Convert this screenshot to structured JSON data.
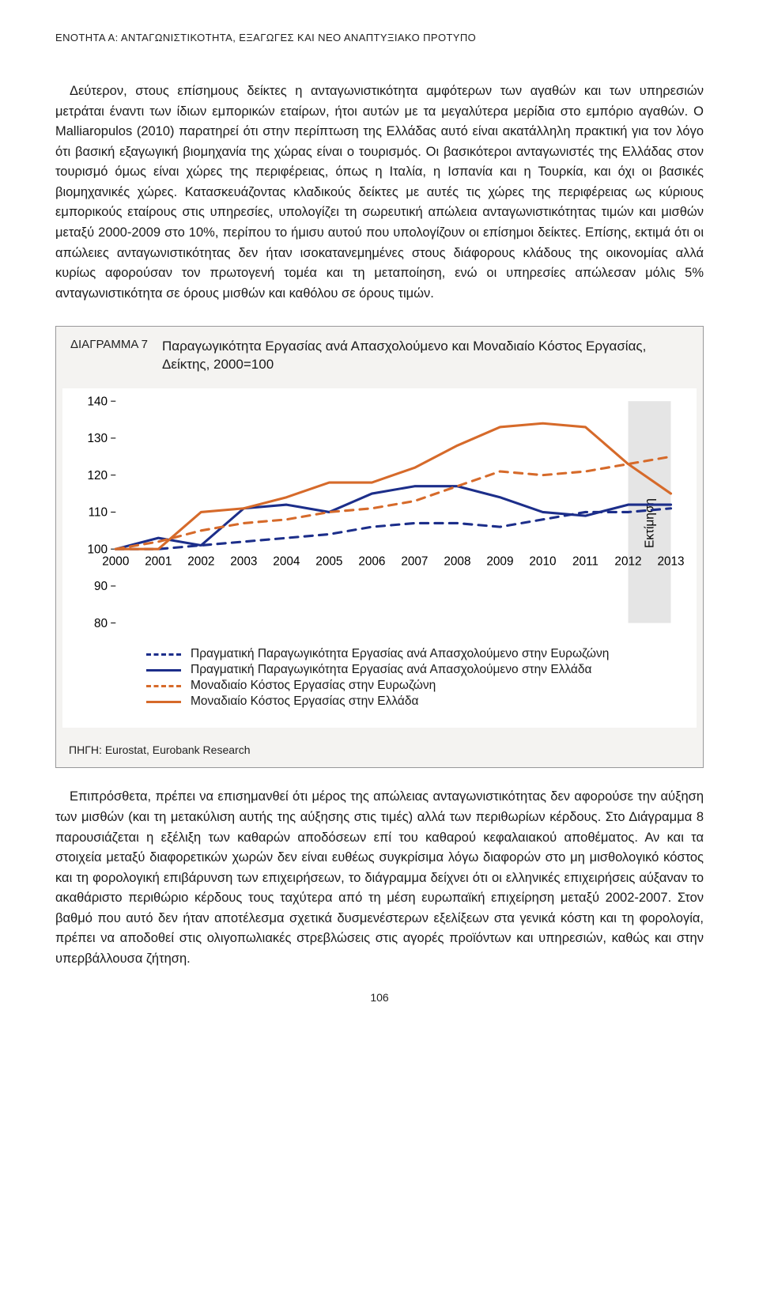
{
  "header": {
    "section_line": "ΕΝΟΤΗΤΑ Α: ΑΝΤΑΓΩΝΙΣΤΙΚΟΤΗΤΑ, ΕΞΑΓΩΓΕΣ ΚΑΙ ΝΕΟ ΑΝΑΠΤΥΞΙΑΚΟ ΠΡΟΤΥΠΟ"
  },
  "paragraphs": {
    "p1": "Δεύτερον, στους επίσημους δείκτες η ανταγωνιστικότητα αμφότερων των αγαθών και των υπηρεσιών μετράται έναντι των ίδιων εμπορικών εταίρων, ήτοι αυτών με τα μεγαλύτερα μερίδια στο εμπόριο αγαθών. Ο Malliaropulos (2010) παρατηρεί ότι στην περίπτωση της Ελλάδας αυτό είναι ακατάλληλη πρακτική για τον λόγο ότι βασική εξαγωγική βιομηχανία της χώρας είναι ο τουρισμός. Οι βασικότεροι ανταγωνιστές της Ελλάδας στον τουρισμό όμως είναι χώρες της περιφέρειας, όπως η Ιταλία, η Ισπανία και η Τουρκία, και όχι οι βασικές βιομηχανικές χώρες. Κατασκευάζοντας κλαδικούς δείκτες με αυτές τις χώρες της περιφέρειας ως κύριους εμπορικούς εταίρους στις υπηρεσίες, υπολογίζει τη σωρευτική απώλεια ανταγωνιστικότητας τιμών και μισθών μεταξύ 2000-2009 στο 10%, περίπου το ήμισυ αυτού που υπολογίζουν οι επίσημοι δείκτες. Επίσης, εκτιμά ότι οι απώλειες ανταγωνιστικότητας δεν ήταν ισοκατανεμημένες στους διάφορους κλάδους της οικονομίας αλλά κυρίως αφορούσαν τον πρωτογενή τομέα και τη μεταποίηση, ενώ οι υπηρεσίες απώλεσαν μόλις 5% ανταγωνιστικότητα σε όρους μισθών και καθόλου σε όρους τιμών.",
    "p2": "Επιπρόσθετα, πρέπει να επισημανθεί ότι μέρος της απώλειας ανταγωνιστικότητας δεν αφορούσε την αύξηση των μισθών (και τη μετακύλιση αυτής της αύξησης στις τιμές) αλλά των περιθωρίων κέρδους. Στο Διάγραμμα 8 παρουσιάζεται η εξέλιξη των καθαρών αποδόσεων επί του καθαρού κεφαλαιακού αποθέματος. Αν και τα στοιχεία μεταξύ διαφορετικών χωρών δεν είναι ευθέως συγκρίσιμα λόγω διαφορών στο μη μισθολογικό κόστος και τη φορολογική επιβάρυνση των επιχειρήσεων, το διάγραμμα δείχνει ότι οι ελληνικές επιχειρήσεις αύξαναν το ακαθάριστο περιθώριο κέρδους τους ταχύτερα από τη μέση ευρωπαϊκή επιχείρηση μεταξύ 2002-2007. Στον βαθμό που αυτό δεν ήταν αποτέλεσμα σχετικά δυσμενέστερων εξελίξεων στα γενικά κόστη και τη φορολογία, πρέπει να αποδοθεί στις ολιγοπωλιακές στρεβλώσεις στις αγορές προϊόντων και υπηρεσιών, καθώς και στην υπερβάλλουσα ζήτηση."
  },
  "figure7": {
    "label": "ΔΙΑΓΡΑΜΜΑ 7",
    "title": "Παραγωγικότητα Εργασίας ανά Απασχολούμενο και Μοναδιαίο Κόστος Εργασίας, Δείκτης, 2000=100",
    "chart": {
      "type": "line",
      "background_color": "#ffffff",
      "plot_border_color": "#f4f3f1",
      "grid_color": "#d9d9d9",
      "axis_color": "#000000",
      "font_family": "Arial",
      "tick_fontsize": 15,
      "ylim": [
        80,
        140
      ],
      "ytick_step": 10,
      "yticks": [
        80,
        90,
        100,
        110,
        120,
        130,
        140
      ],
      "xcategories": [
        "2000",
        "2001",
        "2002",
        "2003",
        "2004",
        "2005",
        "2006",
        "2007",
        "2008",
        "2009",
        "2010",
        "2011",
        "2012",
        "2013"
      ],
      "estimate_region": {
        "from_index": 12,
        "to_index": 13,
        "fill": "#e5e5e5",
        "label": "Εκτίμηση"
      },
      "line_width": 3,
      "series": [
        {
          "id": "prod_ez",
          "color": "#1c2e8a",
          "dash": "dashed",
          "values": [
            100,
            100,
            101,
            102,
            103,
            104,
            106,
            107,
            107,
            106,
            108,
            110,
            110,
            111
          ],
          "label": "Πραγματική Παραγωγικότητα Εργασίας ανά Απασχολούμενο στην Ευρωζώνη"
        },
        {
          "id": "prod_gr",
          "color": "#1c2e8a",
          "dash": "solid",
          "values": [
            100,
            103,
            101,
            111,
            112,
            110,
            115,
            117,
            117,
            114,
            110,
            109,
            112,
            112
          ],
          "label": "Πραγματική Παραγωγικότητα Εργασίας ανά Απασχολούμενο στην Ελλάδα"
        },
        {
          "id": "ulc_ez",
          "color": "#d66a2a",
          "dash": "dashed",
          "values": [
            100,
            102,
            105,
            107,
            108,
            110,
            111,
            113,
            117,
            121,
            120,
            121,
            123,
            125
          ],
          "label": "Μοναδιαίο Κόστος Εργασίας στην Ευρωζώνη"
        },
        {
          "id": "ulc_gr",
          "color": "#d66a2a",
          "dash": "solid",
          "values": [
            100,
            100,
            110,
            111,
            114,
            118,
            118,
            122,
            128,
            133,
            134,
            133,
            123,
            115
          ],
          "label": "Μοναδιαίο Κόστος Εργασίας στην Ελλάδα"
        }
      ]
    },
    "source": "ΠΗΓΗ: Eurostat, Eurobank Research"
  },
  "page_number": "106"
}
